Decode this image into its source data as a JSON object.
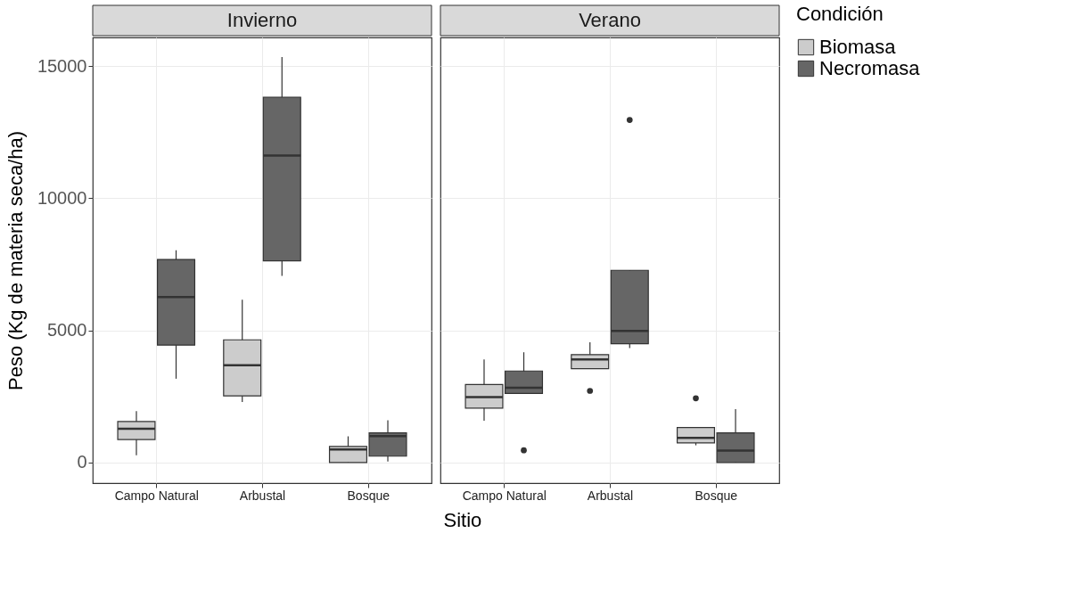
{
  "chart_data": [
    {
      "type": "box",
      "title": "Invierno",
      "xlabel": "Sitio",
      "ylabel": "Peso (Kg de materia seca/ha)",
      "categories": [
        "Campo Natural",
        "Arbustal",
        "Bosque"
      ],
      "ylim": [
        -780,
        16080
      ],
      "yticks": [
        0,
        5000,
        10000,
        15000
      ],
      "grid": true,
      "series": [
        {
          "color": "#cccccc",
          "boxes": [
            {
              "low": 270,
              "q1": 870,
              "median": 1280,
              "q3": 1550,
              "high": 1940
            },
            {
              "low": 2290,
              "q1": 2520,
              "median": 3680,
              "q3": 4640,
              "high": 6160
            },
            {
              "low": 0,
              "q1": 0,
              "median": 490,
              "q3": 610,
              "high": 990
            }
          ]
        },
        {
          "color": "#666666",
          "boxes": [
            {
              "low": 3170,
              "q1": 4440,
              "median": 6260,
              "q3": 7680,
              "high": 8030
            },
            {
              "low": 7060,
              "q1": 7630,
              "median": 11610,
              "q3": 13820,
              "high": 15340
            },
            {
              "low": 40,
              "q1": 240,
              "median": 1000,
              "q3": 1120,
              "high": 1600
            }
          ]
        }
      ]
    },
    {
      "type": "box",
      "title": "Verano",
      "categories": [
        "Campo Natural",
        "Arbustal",
        "Bosque"
      ],
      "ylim": [
        -780,
        16080
      ],
      "yticks": [
        0,
        5000,
        10000,
        15000
      ],
      "grid": true,
      "tick_labels": "x",
      "legend": "right",
      "legend_title": "Condición",
      "series": [
        {
          "name": "Biomasa",
          "color": "#cccccc",
          "boxes": [
            {
              "low": 1580,
              "q1": 2060,
              "median": 2470,
              "q3": 2950,
              "high": 3900
            },
            {
              "low": 3550,
              "q1": 3550,
              "median": 3900,
              "q3": 4080,
              "high": 4550,
              "outliers": [
                2710
              ]
            },
            {
              "low": 650,
              "q1": 740,
              "median": 930,
              "q3": 1320,
              "high": 1320,
              "outliers": [
                2430
              ]
            }
          ]
        },
        {
          "name": "Necromasa",
          "color": "#666666",
          "boxes": [
            {
              "low": 2610,
              "q1": 2610,
              "median": 2830,
              "q3": 3460,
              "high": 4170,
              "outliers": [
                460
              ]
            },
            {
              "low": 4330,
              "q1": 4490,
              "median": 4980,
              "q3": 7270,
              "high": 7270,
              "outliers": [
                12960
              ]
            },
            {
              "low": 0,
              "q1": 0,
              "median": 450,
              "q3": 1120,
              "high": 2020
            }
          ]
        }
      ]
    }
  ]
}
